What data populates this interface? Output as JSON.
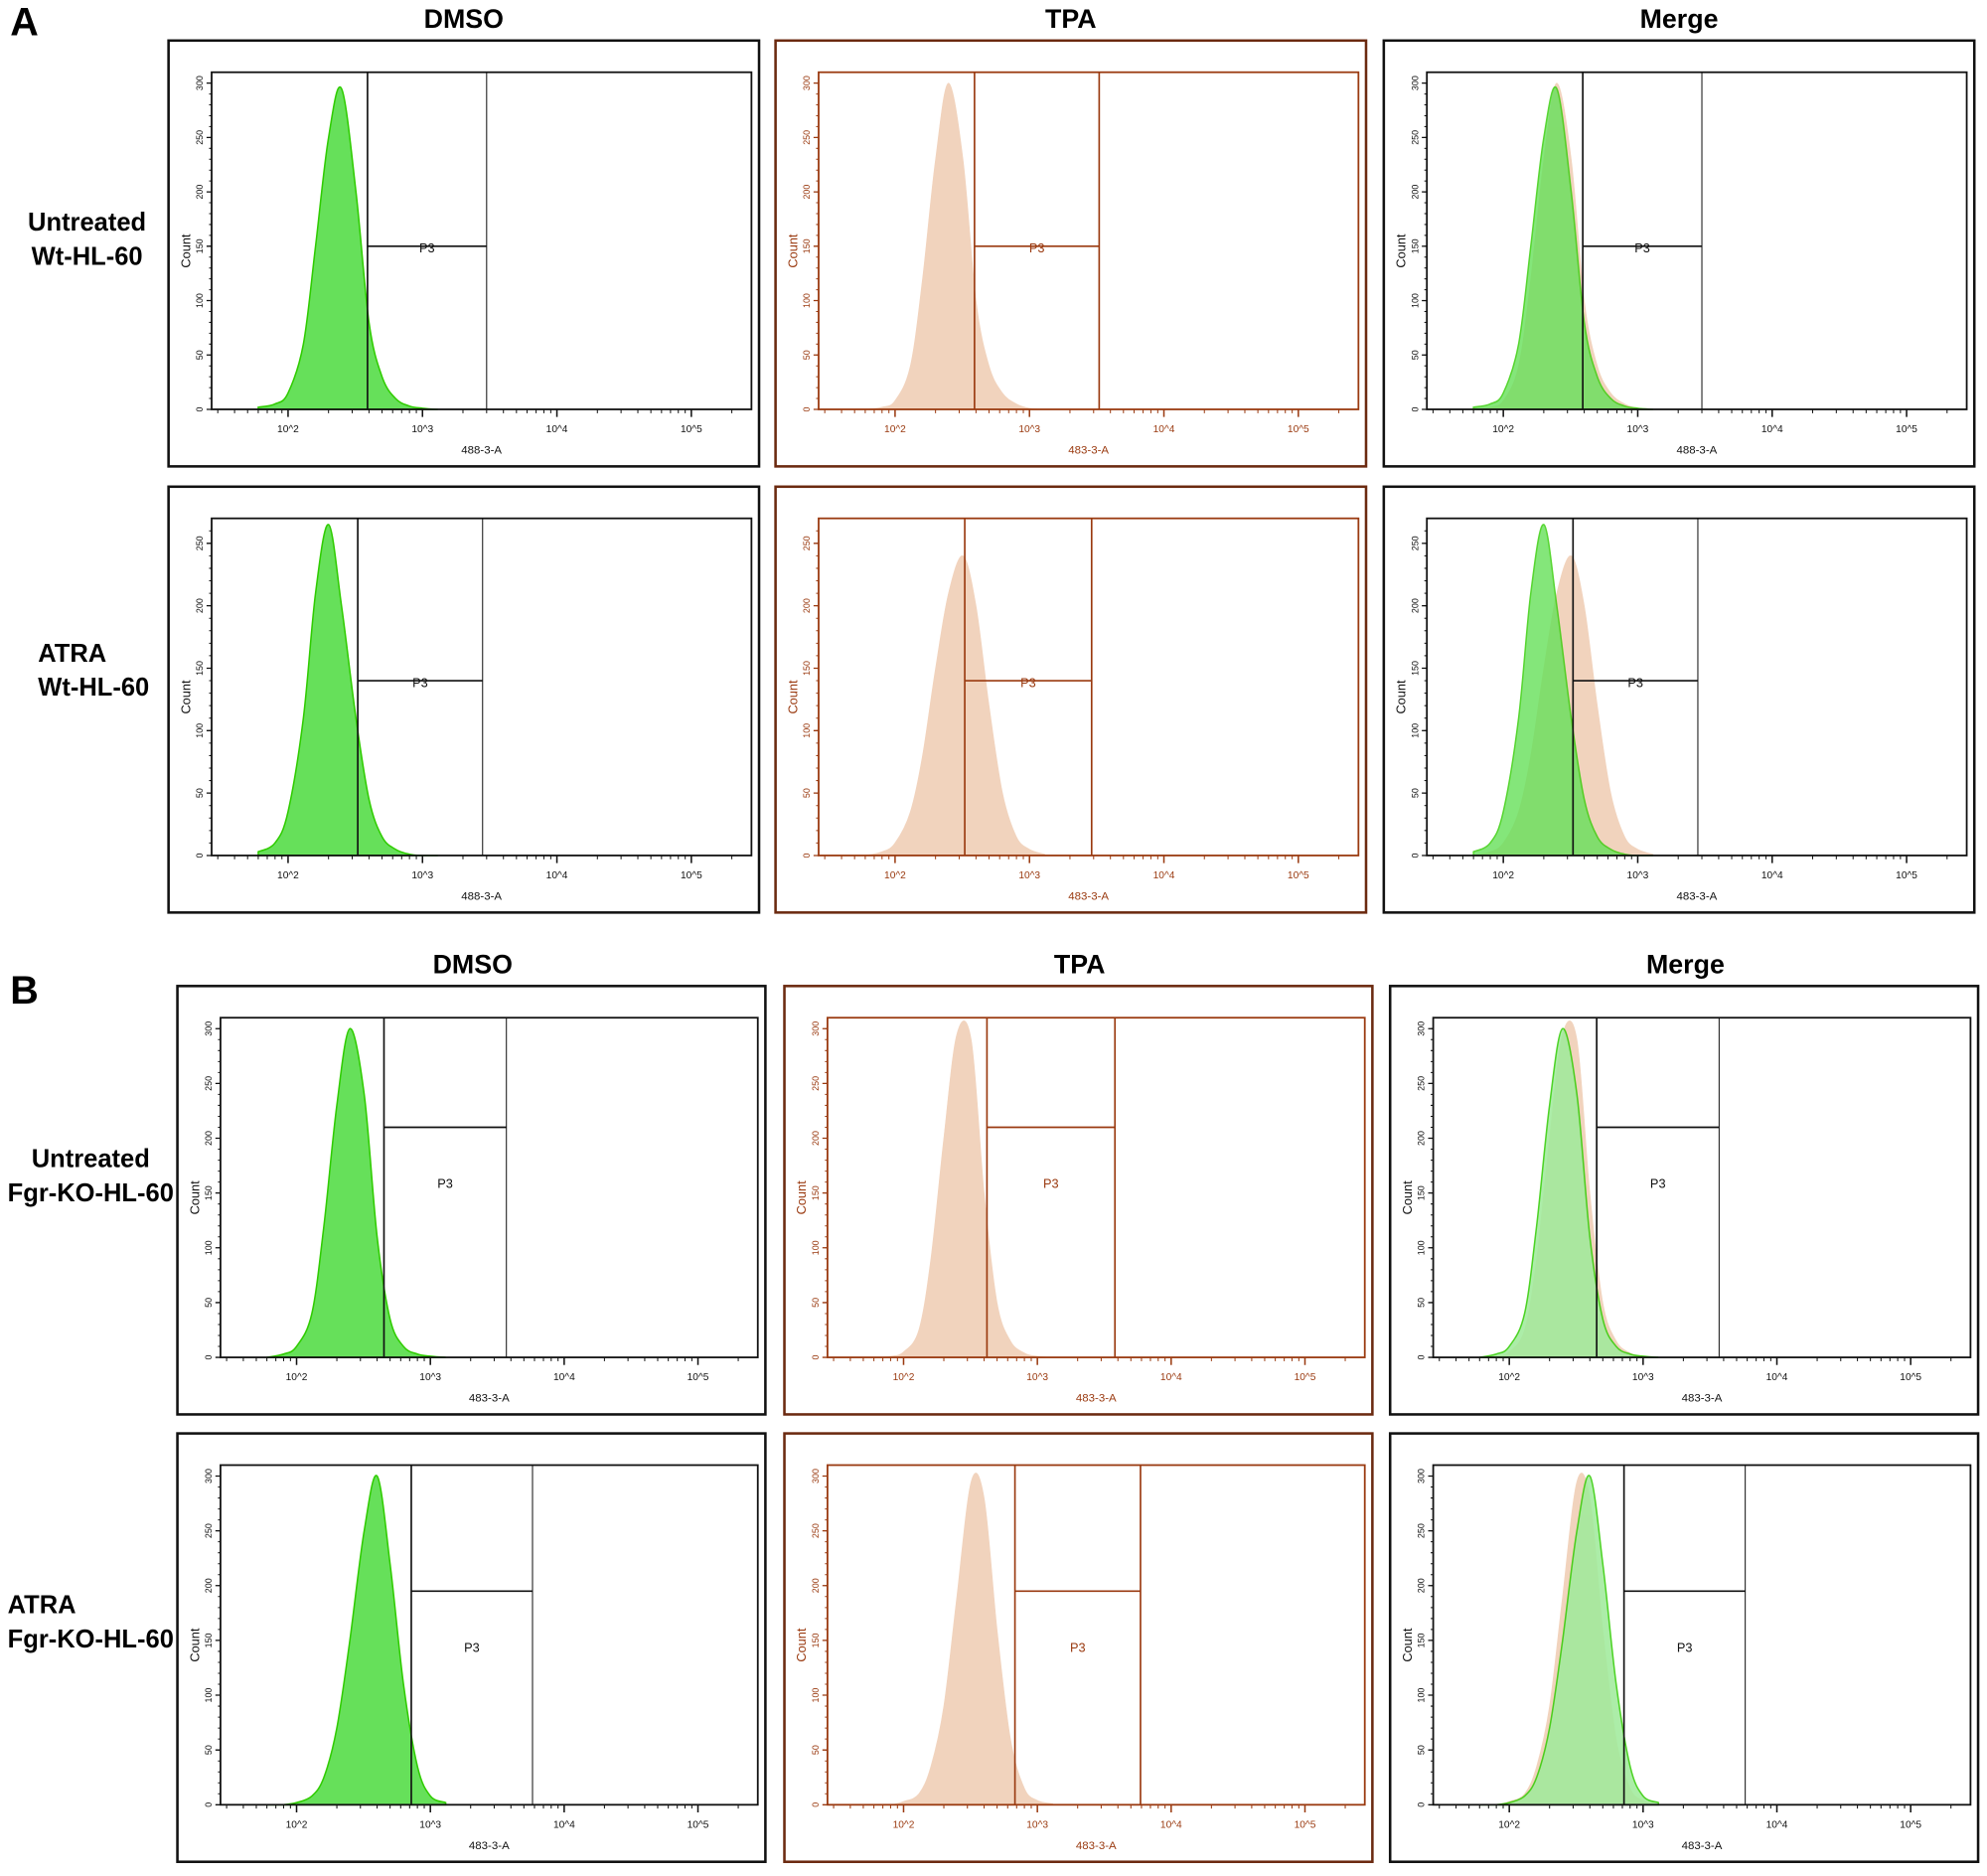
{
  "figure": {
    "panel_labels": [
      "A",
      "B"
    ],
    "columns": [
      "DMSO",
      "TPA",
      "Merge"
    ],
    "rows": {
      "A": [
        "Untreated\nWt-HL-60",
        "ATRA\nWt-HL-60"
      ],
      "B": [
        "Untreated\nFgr-KO-HL-60",
        "ATRA\nFgr-KO-HL-60"
      ]
    },
    "colors": {
      "dmso_fill": "#66e05a",
      "dmso_edge": "#2fcc00",
      "dmso_merge_fill_B": "#9eeb9a",
      "tpa_fill": "#f1d3bd",
      "tpa_axis": "#9a3a10",
      "axis": "#111111"
    }
  },
  "chart_data": [
    {
      "panel": "A",
      "row": "Untreated Wt-HL-60",
      "column": "DMSO",
      "type": "histogram",
      "xlabel": "488-3-A",
      "ylabel": "Count",
      "x_scale": "log",
      "xlim": [
        27,
        280000
      ],
      "ylim": [
        0,
        310
      ],
      "x_ticks": [
        "10^2",
        "10^3",
        "10^4",
        "10^5"
      ],
      "y_ticks": [
        0,
        50,
        100,
        150,
        200,
        250,
        300
      ],
      "gate": {
        "label": "P3",
        "x": [
          390,
          3000
        ],
        "y": 150
      },
      "series": [
        {
          "kind": "DMSO",
          "x": [
            60,
            80,
            100,
            130,
            160,
            200,
            250,
            320,
            400,
            500,
            630,
            800,
            1000,
            1300
          ],
          "counts": [
            2,
            5,
            15,
            60,
            150,
            250,
            295,
            200,
            80,
            30,
            10,
            3,
            1,
            0
          ]
        }
      ]
    },
    {
      "panel": "A",
      "row": "Untreated Wt-HL-60",
      "column": "TPA",
      "type": "histogram",
      "xlabel": "483-3-A",
      "ylabel": "Count",
      "x_scale": "log",
      "xlim": [
        27,
        280000
      ],
      "ylim": [
        0,
        310
      ],
      "x_ticks": [
        "10^2",
        "10^3",
        "10^4",
        "10^5"
      ],
      "y_ticks": [
        0,
        50,
        100,
        150,
        200,
        250,
        300
      ],
      "gate": {
        "label": "P3",
        "x": [
          390,
          3300
        ],
        "y": 150
      },
      "series": [
        {
          "kind": "TPA",
          "x": [
            60,
            80,
            100,
            130,
            160,
            200,
            250,
            320,
            400,
            500,
            630,
            800,
            1000,
            1300
          ],
          "counts": [
            0,
            2,
            8,
            40,
            120,
            230,
            300,
            230,
            100,
            40,
            15,
            5,
            1,
            0
          ]
        }
      ]
    },
    {
      "panel": "A",
      "row": "Untreated Wt-HL-60",
      "column": "Merge",
      "type": "histogram",
      "xlabel": "488-3-A",
      "ylabel": "Count",
      "x_scale": "log",
      "xlim": [
        27,
        280000
      ],
      "ylim": [
        0,
        310
      ],
      "x_ticks": [
        "10^2",
        "10^3",
        "10^4",
        "10^5"
      ],
      "y_ticks": [
        0,
        50,
        100,
        150,
        200,
        250,
        300
      ],
      "gate": {
        "label": "P3",
        "x": [
          390,
          3000
        ],
        "y": 150
      },
      "series": [
        {
          "kind": "TPA",
          "x": [
            60,
            80,
            100,
            130,
            160,
            200,
            250,
            320,
            400,
            500,
            630,
            800,
            1000,
            1300
          ],
          "counts": [
            0,
            2,
            8,
            40,
            120,
            230,
            300,
            230,
            100,
            40,
            15,
            5,
            1,
            0
          ]
        },
        {
          "kind": "DMSO",
          "x": [
            60,
            80,
            100,
            130,
            160,
            200,
            250,
            320,
            400,
            500,
            630,
            800,
            1000,
            1300
          ],
          "counts": [
            2,
            5,
            15,
            60,
            150,
            250,
            295,
            200,
            80,
            30,
            10,
            3,
            1,
            0
          ]
        }
      ]
    },
    {
      "panel": "A",
      "row": "ATRA Wt-HL-60",
      "column": "DMSO",
      "type": "histogram",
      "xlabel": "488-3-A",
      "ylabel": "Count",
      "x_scale": "log",
      "xlim": [
        27,
        280000
      ],
      "ylim": [
        0,
        270
      ],
      "x_ticks": [
        "10^2",
        "10^3",
        "10^4",
        "10^5"
      ],
      "y_ticks": [
        0,
        50,
        100,
        150,
        200,
        250
      ],
      "gate": {
        "label": "P3",
        "x": [
          330,
          2800
        ],
        "y": 140
      },
      "series": [
        {
          "kind": "DMSO",
          "x": [
            60,
            80,
            100,
            130,
            160,
            200,
            250,
            320,
            400,
            500,
            630,
            800,
            1000,
            1300
          ],
          "counts": [
            3,
            10,
            35,
            110,
            210,
            265,
            200,
            110,
            45,
            15,
            5,
            1,
            0,
            0
          ]
        }
      ]
    },
    {
      "panel": "A",
      "row": "ATRA Wt-HL-60",
      "column": "TPA",
      "type": "histogram",
      "xlabel": "483-3-A",
      "ylabel": "Count",
      "x_scale": "log",
      "xlim": [
        27,
        280000
      ],
      "ylim": [
        0,
        270
      ],
      "x_ticks": [
        "10^2",
        "10^3",
        "10^4",
        "10^5"
      ],
      "y_ticks": [
        0,
        50,
        100,
        150,
        200,
        250
      ],
      "gate": {
        "label": "P3",
        "x": [
          330,
          2900
        ],
        "y": 140
      },
      "series": [
        {
          "kind": "TPA",
          "x": [
            60,
            80,
            100,
            130,
            160,
            200,
            250,
            320,
            400,
            500,
            630,
            800,
            1000,
            1300
          ],
          "counts": [
            0,
            3,
            10,
            35,
            80,
            150,
            210,
            240,
            200,
            120,
            50,
            15,
            5,
            1
          ]
        }
      ]
    },
    {
      "panel": "A",
      "row": "ATRA Wt-HL-60",
      "column": "Merge",
      "type": "histogram",
      "xlabel": "483-3-A",
      "ylabel": "Count",
      "x_scale": "log",
      "xlim": [
        27,
        280000
      ],
      "ylim": [
        0,
        270
      ],
      "x_ticks": [
        "10^2",
        "10^3",
        "10^4",
        "10^5"
      ],
      "y_ticks": [
        0,
        50,
        100,
        150,
        200,
        250
      ],
      "gate": {
        "label": "P3",
        "x": [
          330,
          2800
        ],
        "y": 140
      },
      "series": [
        {
          "kind": "TPA",
          "x": [
            60,
            80,
            100,
            130,
            160,
            200,
            250,
            320,
            400,
            500,
            630,
            800,
            1000,
            1300
          ],
          "counts": [
            0,
            3,
            10,
            35,
            80,
            150,
            210,
            240,
            200,
            120,
            50,
            15,
            5,
            1
          ]
        },
        {
          "kind": "DMSO",
          "x": [
            60,
            80,
            100,
            130,
            160,
            200,
            250,
            320,
            400,
            500,
            630,
            800,
            1000,
            1300
          ],
          "counts": [
            3,
            10,
            35,
            110,
            210,
            265,
            200,
            110,
            45,
            15,
            5,
            1,
            0,
            0
          ]
        }
      ]
    },
    {
      "panel": "B",
      "row": "Untreated Fgr-KO-HL-60",
      "column": "DMSO",
      "type": "histogram",
      "xlabel": "483-3-A",
      "ylabel": "Count",
      "x_scale": "log",
      "xlim": [
        27,
        280000
      ],
      "ylim": [
        0,
        310
      ],
      "x_ticks": [
        "10^2",
        "10^3",
        "10^4",
        "10^5"
      ],
      "y_ticks": [
        0,
        50,
        100,
        150,
        200,
        250,
        300
      ],
      "gate": {
        "label": "P3",
        "x": [
          450,
          3700
        ],
        "y": 210
      },
      "series": [
        {
          "kind": "DMSO",
          "x": [
            60,
            80,
            100,
            130,
            160,
            200,
            250,
            320,
            400,
            500,
            630,
            800,
            1000,
            1300
          ],
          "counts": [
            0,
            3,
            10,
            40,
            120,
            230,
            300,
            240,
            110,
            35,
            10,
            3,
            1,
            0
          ]
        }
      ]
    },
    {
      "panel": "B",
      "row": "Untreated Fgr-KO-HL-60",
      "column": "TPA",
      "type": "histogram",
      "xlabel": "483-3-A",
      "ylabel": "Count",
      "x_scale": "log",
      "xlim": [
        27,
        280000
      ],
      "ylim": [
        0,
        310
      ],
      "x_ticks": [
        "10^2",
        "10^3",
        "10^4",
        "10^5"
      ],
      "y_ticks": [
        0,
        50,
        100,
        150,
        200,
        250,
        300
      ],
      "gate": {
        "label": "P3",
        "x": [
          420,
          3800
        ],
        "y": 210
      },
      "series": [
        {
          "kind": "TPA",
          "x": [
            60,
            80,
            100,
            130,
            160,
            200,
            250,
            320,
            400,
            500,
            630,
            800,
            1000,
            1300
          ],
          "counts": [
            0,
            1,
            5,
            25,
            90,
            200,
            295,
            290,
            150,
            50,
            15,
            4,
            1,
            0
          ]
        }
      ]
    },
    {
      "panel": "B",
      "row": "Untreated Fgr-KO-HL-60",
      "column": "Merge",
      "type": "histogram",
      "xlabel": "483-3-A",
      "ylabel": "Count",
      "x_scale": "log",
      "xlim": [
        27,
        280000
      ],
      "ylim": [
        0,
        310
      ],
      "x_ticks": [
        "10^2",
        "10^3",
        "10^4",
        "10^5"
      ],
      "y_ticks": [
        0,
        50,
        100,
        150,
        200,
        250,
        300
      ],
      "gate": {
        "label": "P3",
        "x": [
          450,
          3700
        ],
        "y": 210
      },
      "series": [
        {
          "kind": "TPA",
          "x": [
            60,
            80,
            100,
            130,
            160,
            200,
            250,
            320,
            400,
            500,
            630,
            800,
            1000,
            1300
          ],
          "counts": [
            0,
            1,
            5,
            25,
            90,
            200,
            295,
            290,
            150,
            50,
            15,
            4,
            1,
            0
          ]
        },
        {
          "kind": "DMSO",
          "x": [
            60,
            80,
            100,
            130,
            160,
            200,
            250,
            320,
            400,
            500,
            630,
            800,
            1000,
            1300
          ],
          "counts": [
            0,
            3,
            10,
            40,
            120,
            230,
            300,
            240,
            110,
            35,
            10,
            3,
            1,
            0
          ]
        }
      ]
    },
    {
      "panel": "B",
      "row": "ATRA Fgr-KO-HL-60",
      "column": "DMSO",
      "type": "histogram",
      "xlabel": "483-3-A",
      "ylabel": "Count",
      "x_scale": "log",
      "xlim": [
        27,
        280000
      ],
      "ylim": [
        0,
        310
      ],
      "x_ticks": [
        "10^2",
        "10^3",
        "10^4",
        "10^5"
      ],
      "y_ticks": [
        0,
        50,
        100,
        150,
        200,
        250,
        300
      ],
      "gate": {
        "label": "P3",
        "x": [
          720,
          5800
        ],
        "y": 195
      },
      "series": [
        {
          "kind": "DMSO",
          "x": [
            60,
            80,
            100,
            130,
            160,
            200,
            250,
            320,
            400,
            500,
            630,
            800,
            1000,
            1300
          ],
          "counts": [
            0,
            0,
            2,
            8,
            25,
            70,
            150,
            250,
            300,
            220,
            110,
            35,
            8,
            2
          ]
        }
      ]
    },
    {
      "panel": "B",
      "row": "ATRA Fgr-KO-HL-60",
      "column": "TPA",
      "type": "histogram",
      "xlabel": "483-3-A",
      "ylabel": "Count",
      "x_scale": "log",
      "xlim": [
        27,
        280000
      ],
      "ylim": [
        0,
        310
      ],
      "x_ticks": [
        "10^2",
        "10^3",
        "10^4",
        "10^5"
      ],
      "y_ticks": [
        0,
        50,
        100,
        150,
        200,
        250,
        300
      ],
      "gate": {
        "label": "P3",
        "x": [
          680,
          5900
        ],
        "y": 195
      },
      "series": [
        {
          "kind": "TPA",
          "x": [
            60,
            80,
            100,
            130,
            160,
            200,
            250,
            320,
            400,
            500,
            630,
            800,
            1000,
            1300
          ],
          "counts": [
            0,
            0,
            3,
            10,
            35,
            90,
            190,
            295,
            280,
            160,
            60,
            15,
            4,
            1
          ]
        }
      ]
    },
    {
      "panel": "B",
      "row": "ATRA Fgr-KO-HL-60",
      "column": "Merge",
      "type": "histogram",
      "xlabel": "483-3-A",
      "ylabel": "Count",
      "x_scale": "log",
      "xlim": [
        27,
        280000
      ],
      "ylim": [
        0,
        310
      ],
      "x_ticks": [
        "10^2",
        "10^3",
        "10^4",
        "10^5"
      ],
      "y_ticks": [
        0,
        50,
        100,
        150,
        200,
        250,
        300
      ],
      "gate": {
        "label": "P3",
        "x": [
          720,
          5800
        ],
        "y": 195
      },
      "series": [
        {
          "kind": "TPA",
          "x": [
            60,
            80,
            100,
            130,
            160,
            200,
            250,
            320,
            400,
            500,
            630,
            800,
            1000,
            1300
          ],
          "counts": [
            0,
            0,
            3,
            10,
            35,
            90,
            190,
            295,
            280,
            160,
            60,
            15,
            4,
            1
          ]
        },
        {
          "kind": "DMSO",
          "x": [
            60,
            80,
            100,
            130,
            160,
            200,
            250,
            320,
            400,
            500,
            630,
            800,
            1000,
            1300
          ],
          "counts": [
            0,
            0,
            2,
            8,
            25,
            70,
            150,
            250,
            300,
            220,
            110,
            35,
            8,
            2
          ]
        }
      ]
    }
  ]
}
